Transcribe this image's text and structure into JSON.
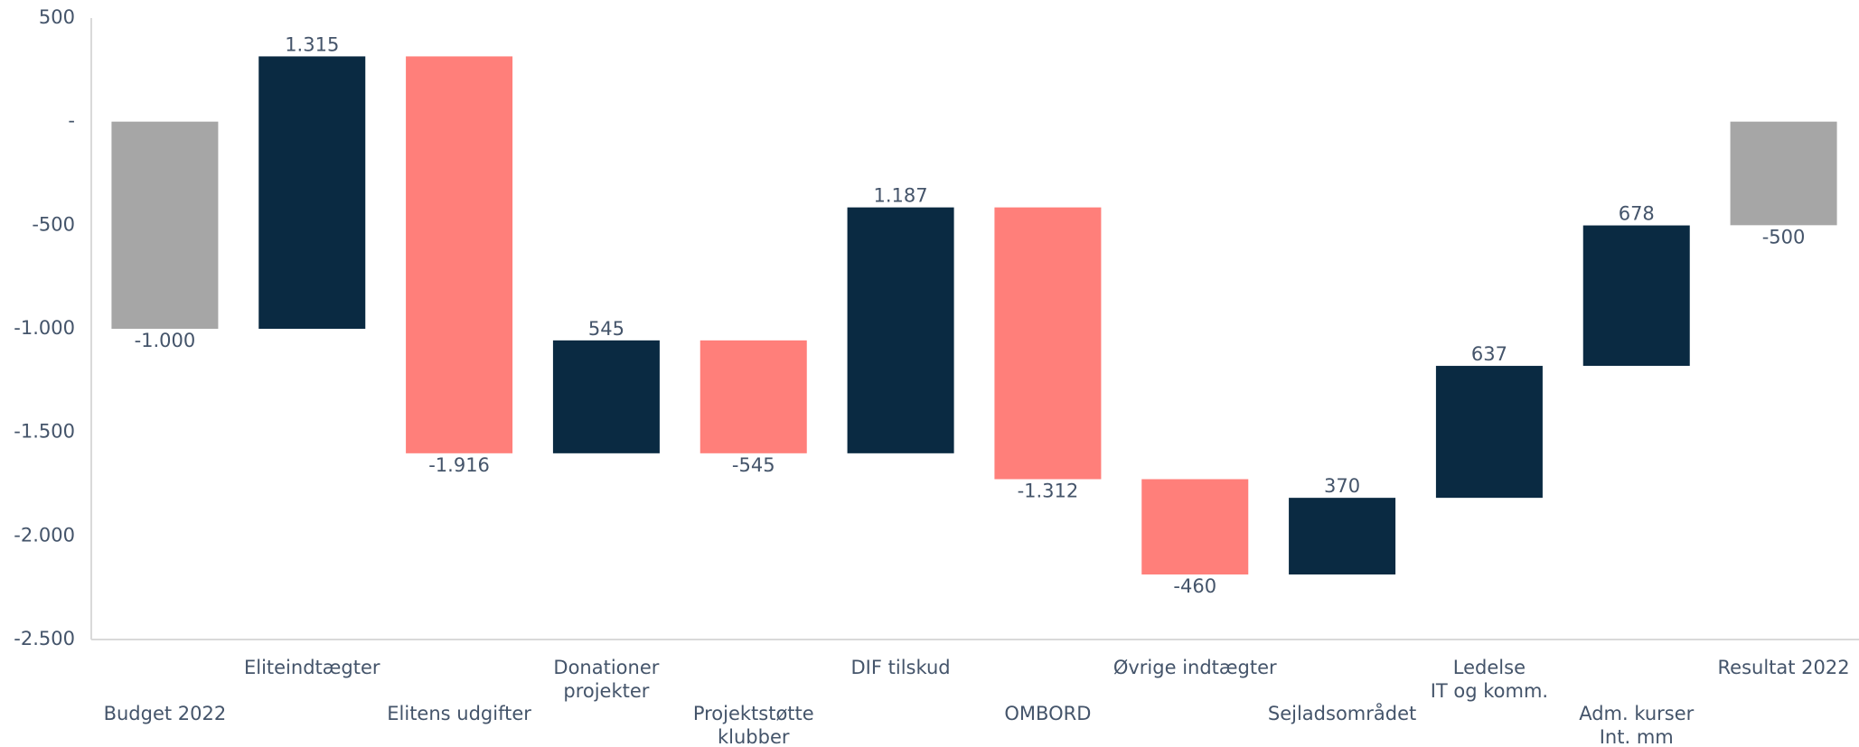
{
  "chart_data": {
    "type": "waterfall",
    "categories": [
      "Budget 2022",
      "Eliteindtægter",
      "Elitens udgifter",
      "Donationer\nprojekter",
      "Projektstøtte\nklubber",
      "DIF tilskud",
      "OMBORD",
      "Øvrige indtægter",
      "Sejladsområdet",
      "Ledelse\nIT og komm.",
      "Adm. kurser\nInt. mm",
      "Resultat 2022"
    ],
    "values": [
      -1000,
      1315,
      -1916,
      545,
      -545,
      1187,
      -1312,
      -460,
      370,
      637,
      678,
      -500
    ],
    "value_labels": [
      "-1.000",
      "1.315",
      "-1.916",
      "545",
      "-545",
      "1.187",
      "-1.312",
      "-460",
      "370",
      "637",
      "678",
      "-500"
    ],
    "total_color": "#a6a6a6",
    "increase_color": "#0a2a42",
    "decrease_color": "#ff7f7a",
    "ylim": [
      -2500,
      500
    ],
    "yticks": [
      500,
      {
        "value": 0,
        "label": "-"
      },
      -500,
      {
        "value": -1000,
        "label": "-1.000"
      },
      {
        "value": -1500,
        "label": "-1.500"
      },
      {
        "value": -2000,
        "label": "-2.000"
      },
      {
        "value": -2500,
        "label": "-2.500"
      }
    ],
    "grid": false
  }
}
